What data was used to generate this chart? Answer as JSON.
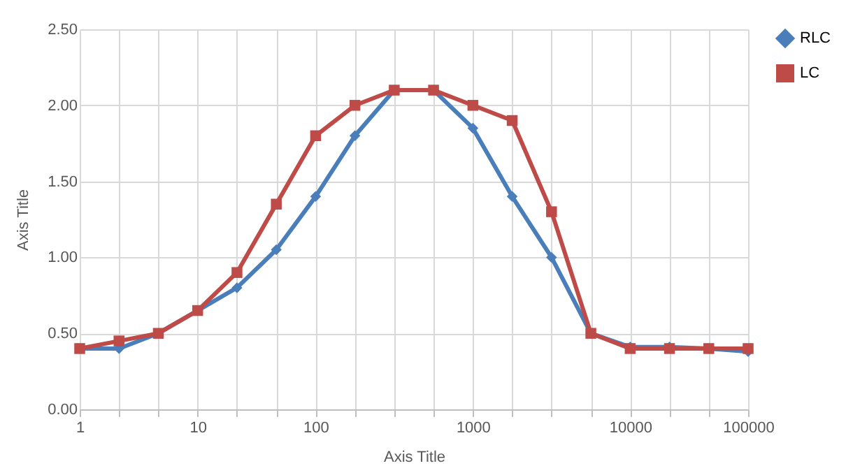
{
  "chart_data": {
    "type": "line",
    "xlabel": "Axis Title",
    "ylabel": "Axis Title",
    "categories": [
      "1",
      null,
      null,
      "10",
      null,
      null,
      "100",
      null,
      null,
      null,
      "1000",
      null,
      null,
      null,
      "10000",
      null,
      null,
      "100000"
    ],
    "series": [
      {
        "name": "RLC",
        "color": "#4a7ebb",
        "marker": "diamond",
        "values": [
          0.4,
          0.4,
          0.5,
          0.65,
          0.8,
          1.05,
          1.4,
          1.8,
          2.1,
          2.1,
          1.85,
          1.4,
          1.0,
          0.5,
          0.41,
          0.41,
          0.4,
          0.38
        ]
      },
      {
        "name": "LC",
        "color": "#be4b48",
        "marker": "square",
        "values": [
          0.4,
          0.45,
          0.5,
          0.65,
          0.9,
          1.35,
          1.8,
          2.0,
          2.1,
          2.1,
          2.0,
          1.9,
          1.3,
          0.5,
          0.4,
          0.4,
          0.4,
          0.4
        ]
      }
    ],
    "ylim": [
      0,
      2.5
    ],
    "yticks": [
      {
        "value": 0,
        "label": "0.00"
      },
      {
        "value": 0.5,
        "label": "0.50"
      },
      {
        "value": 1,
        "label": "1.00"
      },
      {
        "value": 1.5,
        "label": "1.50"
      },
      {
        "value": 2,
        "label": "2.00"
      },
      {
        "value": 2.5,
        "label": "2.50"
      }
    ],
    "grid": true,
    "legend": "right",
    "line_style": "solid"
  }
}
